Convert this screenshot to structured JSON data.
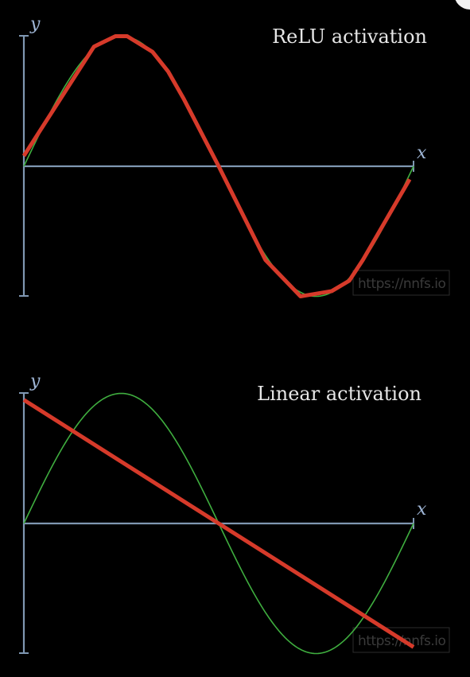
{
  "colors": {
    "background": "#000000",
    "axis": "#7f97b2",
    "target_curve": "#3fae3f",
    "prediction_curve": "#d63a2a",
    "title": "#e6e6e6",
    "watermark": "#3a3a3a"
  },
  "watermark": "https://nnfs.io",
  "chart_data": [
    {
      "type": "line",
      "title": "ReLU activation",
      "xlabel": "x",
      "ylabel": "y",
      "xlim": [
        0,
        1
      ],
      "ylim": [
        -1,
        1
      ],
      "grid": false,
      "series": [
        {
          "role": "target",
          "x": [
            0,
            0.05,
            0.1,
            0.15,
            0.2,
            0.25,
            0.3,
            0.35,
            0.4,
            0.45,
            0.5,
            0.55,
            0.6,
            0.65,
            0.7,
            0.75,
            0.8,
            0.85,
            0.9,
            0.95,
            1
          ],
          "values": [
            0,
            0.309,
            0.588,
            0.809,
            0.951,
            1,
            0.951,
            0.809,
            0.588,
            0.309,
            0,
            -0.309,
            -0.588,
            -0.809,
            -0.951,
            -1,
            -0.951,
            -0.809,
            -0.588,
            -0.309,
            0
          ]
        },
        {
          "role": "prediction",
          "x": [
            0,
            0.18,
            0.235,
            0.265,
            0.33,
            0.37,
            0.41,
            0.5,
            0.62,
            0.71,
            0.79,
            0.835,
            0.87,
            0.99
          ],
          "values": [
            0.08,
            0.92,
            1,
            1,
            0.88,
            0.73,
            0.52,
            0,
            -0.72,
            -1,
            -0.96,
            -0.88,
            -0.72,
            -0.1
          ]
        }
      ]
    },
    {
      "type": "line",
      "title": "Linear activation",
      "xlabel": "x",
      "ylabel": "y",
      "xlim": [
        0,
        1
      ],
      "ylim": [
        -1,
        1
      ],
      "grid": false,
      "series": [
        {
          "role": "target",
          "x": [
            0,
            0.05,
            0.1,
            0.15,
            0.2,
            0.25,
            0.3,
            0.35,
            0.4,
            0.45,
            0.5,
            0.55,
            0.6,
            0.65,
            0.7,
            0.75,
            0.8,
            0.85,
            0.9,
            0.95,
            1
          ],
          "values": [
            0,
            0.309,
            0.588,
            0.809,
            0.951,
            1,
            0.951,
            0.809,
            0.588,
            0.309,
            0,
            -0.309,
            -0.588,
            -0.809,
            -0.951,
            -1,
            -0.951,
            -0.809,
            -0.588,
            -0.309,
            0
          ]
        },
        {
          "role": "prediction",
          "x": [
            0,
            1
          ],
          "values": [
            0.95,
            -0.95
          ]
        }
      ]
    }
  ]
}
